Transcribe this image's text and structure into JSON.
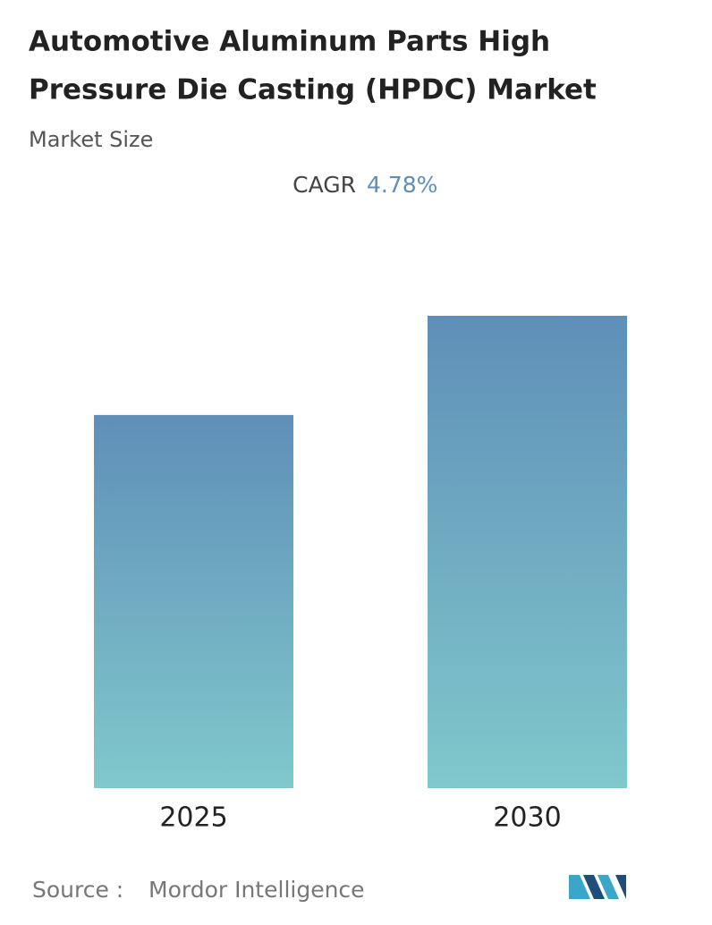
{
  "chart_data": {
    "type": "bar",
    "title": [
      "Automotive Aluminum Parts High",
      "Pressure Die Casting (HPDC) Market"
    ],
    "subtitle": "Market Size",
    "cagr_label": "CAGR",
    "cagr": "4.78%",
    "categories": [
      "2025",
      "2030"
    ],
    "values": [
      79,
      100
    ],
    "color_top": "#5f8fb8",
    "color_bottom": "#80c8cc",
    "source_label": "Source :",
    "source": "Mordor Intelligence"
  }
}
